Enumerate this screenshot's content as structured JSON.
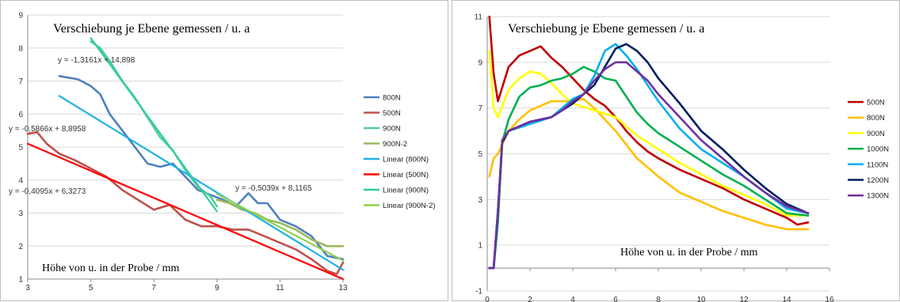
{
  "chart_data": [
    {
      "type": "line",
      "title": "Verschiebung je Ebene gemessen / u. a",
      "xlabel": "Höhe von u. in der Probe / mm",
      "ylabel": "",
      "xlim": [
        3,
        13
      ],
      "ylim": [
        1,
        9
      ],
      "x_ticks": [
        "3",
        "5",
        "7",
        "9",
        "11",
        "13"
      ],
      "y_ticks": [
        "1",
        "2",
        "3",
        "4",
        "5",
        "6",
        "7",
        "8",
        "9"
      ],
      "grid": "horizontal",
      "legend_position": "right",
      "series": [
        {
          "name": "800N",
          "color": "#4f81bd",
          "points": [
            [
              4.0,
              7.15
            ],
            [
              4.3,
              7.1
            ],
            [
              4.6,
              7.05
            ],
            [
              5.0,
              6.85
            ],
            [
              5.3,
              6.6
            ],
            [
              5.6,
              6.0
            ],
            [
              6.0,
              5.5
            ],
            [
              6.4,
              5.0
            ],
            [
              6.8,
              4.5
            ],
            [
              7.2,
              4.4
            ],
            [
              7.6,
              4.5
            ],
            [
              8.0,
              4.1
            ],
            [
              8.4,
              3.7
            ],
            [
              8.8,
              3.55
            ],
            [
              9.2,
              3.4
            ],
            [
              9.6,
              3.2
            ],
            [
              10.0,
              3.6
            ],
            [
              10.3,
              3.3
            ],
            [
              10.6,
              3.3
            ],
            [
              11.0,
              2.8
            ],
            [
              11.5,
              2.6
            ],
            [
              12.0,
              2.3
            ],
            [
              12.5,
              1.7
            ],
            [
              13.0,
              1.6
            ]
          ]
        },
        {
          "name": "500N",
          "color": "#c0504d",
          "points": [
            [
              3.0,
              5.4
            ],
            [
              3.3,
              5.45
            ],
            [
              3.6,
              5.1
            ],
            [
              4.0,
              4.8
            ],
            [
              4.5,
              4.6
            ],
            [
              5.0,
              4.35
            ],
            [
              5.5,
              4.1
            ],
            [
              6.0,
              3.7
            ],
            [
              6.5,
              3.4
            ],
            [
              7.0,
              3.1
            ],
            [
              7.5,
              3.25
            ],
            [
              8.0,
              2.8
            ],
            [
              8.5,
              2.6
            ],
            [
              9.0,
              2.6
            ],
            [
              9.5,
              2.5
            ],
            [
              10.0,
              2.5
            ],
            [
              10.5,
              2.3
            ],
            [
              11.0,
              2.1
            ],
            [
              11.5,
              1.9
            ],
            [
              12.0,
              1.6
            ],
            [
              12.5,
              1.25
            ],
            [
              12.8,
              1.15
            ],
            [
              13.0,
              1.5
            ]
          ]
        },
        {
          "name": "900N",
          "color": "#4ecca3",
          "points": [
            [
              5.0,
              8.2
            ],
            [
              5.3,
              8.0
            ],
            [
              5.6,
              7.6
            ],
            [
              6.0,
              7.0
            ],
            [
              6.4,
              6.5
            ],
            [
              6.8,
              5.9
            ],
            [
              7.2,
              5.3
            ],
            [
              7.6,
              4.9
            ],
            [
              8.0,
              4.3
            ],
            [
              8.4,
              3.8
            ],
            [
              8.8,
              3.5
            ],
            [
              9.0,
              3.2
            ]
          ]
        },
        {
          "name": "900N-2",
          "color": "#9bbb59",
          "points": [
            [
              9.0,
              3.4
            ],
            [
              9.4,
              3.3
            ],
            [
              9.8,
              3.1
            ],
            [
              10.2,
              3.0
            ],
            [
              10.6,
              2.8
            ],
            [
              11.0,
              2.7
            ],
            [
              11.5,
              2.5
            ],
            [
              12.0,
              2.2
            ],
            [
              12.5,
              2.0
            ],
            [
              13.0,
              2.0
            ]
          ]
        },
        {
          "name": "Linear (800N)",
          "color": "#1fb1e6",
          "points": [
            [
              4.0,
              6.55
            ],
            [
              13.0,
              1.28
            ]
          ]
        },
        {
          "name": "Linear (500N)",
          "color": "#ff0000",
          "points": [
            [
              3.0,
              5.1
            ],
            [
              13.0,
              1.0
            ]
          ]
        },
        {
          "name": "Linear (900N)",
          "color": "#33cc99",
          "points": [
            [
              5.0,
              8.3
            ],
            [
              9.0,
              3.05
            ]
          ]
        },
        {
          "name": "Linear (900N-2)",
          "color": "#92d050",
          "points": [
            [
              9.0,
              3.58
            ],
            [
              13.0,
              1.56
            ]
          ]
        }
      ],
      "annotations": [
        "y = -1,3161x + 14,898",
        "y = -0,5866x + 8,8958",
        "y = -0,4095x + 6,3273",
        "y = -0,5039x + 8,1165"
      ]
    },
    {
      "type": "line",
      "title": "Verschiebung je Ebene gemessen / u. a",
      "xlabel": "Höhe von u. in der Probe / mm",
      "ylabel": "",
      "xlim": [
        0,
        16
      ],
      "ylim": [
        -1,
        11
      ],
      "x_ticks": [
        "0",
        "2",
        "4",
        "6",
        "8",
        "10",
        "12",
        "14",
        "16"
      ],
      "y_ticks": [
        "-1",
        "1",
        "3",
        "5",
        "7",
        "9",
        "11"
      ],
      "grid": "horizontal",
      "legend_position": "right",
      "series": [
        {
          "name": "500N",
          "color": "#c00000",
          "points": [
            [
              0.1,
              11.0
            ],
            [
              0.3,
              8.5
            ],
            [
              0.5,
              7.3
            ],
            [
              1.0,
              8.8
            ],
            [
              1.5,
              9.3
            ],
            [
              2.0,
              9.5
            ],
            [
              2.5,
              9.7
            ],
            [
              3.0,
              9.2
            ],
            [
              3.5,
              8.8
            ],
            [
              4.0,
              8.3
            ],
            [
              4.5,
              7.8
            ],
            [
              5.0,
              7.4
            ],
            [
              5.5,
              7.1
            ],
            [
              6.0,
              6.6
            ],
            [
              6.5,
              6.0
            ],
            [
              7.0,
              5.5
            ],
            [
              7.5,
              5.1
            ],
            [
              8.0,
              4.8
            ],
            [
              9.0,
              4.3
            ],
            [
              10.0,
              3.9
            ],
            [
              11.0,
              3.5
            ],
            [
              12.0,
              3.0
            ],
            [
              13.0,
              2.6
            ],
            [
              14.0,
              2.2
            ],
            [
              14.5,
              1.9
            ],
            [
              15.0,
              2.0
            ]
          ]
        },
        {
          "name": "800N",
          "color": "#ffc000",
          "points": [
            [
              0.1,
              4.0
            ],
            [
              0.3,
              4.8
            ],
            [
              0.5,
              5.0
            ],
            [
              1.0,
              6.0
            ],
            [
              1.5,
              6.5
            ],
            [
              2.0,
              6.9
            ],
            [
              3.0,
              7.3
            ],
            [
              4.0,
              7.3
            ],
            [
              4.5,
              7.4
            ],
            [
              5.0,
              7.0
            ],
            [
              5.5,
              6.5
            ],
            [
              6.0,
              6.0
            ],
            [
              6.5,
              5.4
            ],
            [
              7.0,
              4.8
            ],
            [
              7.5,
              4.4
            ],
            [
              8.0,
              4.0
            ],
            [
              9.0,
              3.3
            ],
            [
              10.0,
              2.9
            ],
            [
              11.0,
              2.5
            ],
            [
              12.0,
              2.2
            ],
            [
              13.0,
              1.9
            ],
            [
              14.0,
              1.7
            ],
            [
              15.0,
              1.7
            ]
          ]
        },
        {
          "name": "900N",
          "color": "#ffff00",
          "points": [
            [
              0.1,
              9.5
            ],
            [
              0.3,
              7.0
            ],
            [
              0.5,
              6.6
            ],
            [
              1.0,
              7.8
            ],
            [
              1.5,
              8.3
            ],
            [
              2.0,
              8.6
            ],
            [
              2.5,
              8.5
            ],
            [
              3.0,
              8.1
            ],
            [
              3.5,
              7.6
            ],
            [
              4.0,
              7.2
            ],
            [
              5.0,
              6.9
            ],
            [
              6.0,
              6.6
            ],
            [
              6.5,
              6.2
            ],
            [
              7.0,
              5.8
            ],
            [
              8.0,
              5.2
            ],
            [
              9.0,
              4.6
            ],
            [
              10.0,
              4.1
            ],
            [
              11.0,
              3.6
            ],
            [
              12.0,
              3.2
            ],
            [
              13.0,
              2.8
            ],
            [
              14.0,
              2.3
            ],
            [
              15.0,
              2.3
            ]
          ]
        },
        {
          "name": "1000N",
          "color": "#00b050",
          "points": [
            [
              0.1,
              0.0
            ],
            [
              0.3,
              0.0
            ],
            [
              0.5,
              2.0
            ],
            [
              0.7,
              5.5
            ],
            [
              1.0,
              6.5
            ],
            [
              1.5,
              7.5
            ],
            [
              2.0,
              7.9
            ],
            [
              2.5,
              8.0
            ],
            [
              3.0,
              8.2
            ],
            [
              3.5,
              8.3
            ],
            [
              4.0,
              8.5
            ],
            [
              4.5,
              8.8
            ],
            [
              5.0,
              8.6
            ],
            [
              5.5,
              8.3
            ],
            [
              6.0,
              8.2
            ],
            [
              6.5,
              7.5
            ],
            [
              7.0,
              6.8
            ],
            [
              7.5,
              6.3
            ],
            [
              8.0,
              5.9
            ],
            [
              9.0,
              5.3
            ],
            [
              10.0,
              4.7
            ],
            [
              11.0,
              4.1
            ],
            [
              12.0,
              3.6
            ],
            [
              13.0,
              3.0
            ],
            [
              14.0,
              2.4
            ],
            [
              15.0,
              2.3
            ]
          ]
        },
        {
          "name": "1100N",
          "color": "#00b0f0",
          "points": [
            [
              0.1,
              0.0
            ],
            [
              0.3,
              0.0
            ],
            [
              0.5,
              2.5
            ],
            [
              0.7,
              5.5
            ],
            [
              1.0,
              6.0
            ],
            [
              2.0,
              6.3
            ],
            [
              3.0,
              6.6
            ],
            [
              3.5,
              7.0
            ],
            [
              4.0,
              7.4
            ],
            [
              4.5,
              7.6
            ],
            [
              5.0,
              8.4
            ],
            [
              5.5,
              9.5
            ],
            [
              6.0,
              9.8
            ],
            [
              6.5,
              9.3
            ],
            [
              7.0,
              8.7
            ],
            [
              7.5,
              8.0
            ],
            [
              8.0,
              7.3
            ],
            [
              9.0,
              6.1
            ],
            [
              10.0,
              5.2
            ],
            [
              11.0,
              4.6
            ],
            [
              12.0,
              4.0
            ],
            [
              13.0,
              3.3
            ],
            [
              14.0,
              2.6
            ],
            [
              15.0,
              2.4
            ]
          ]
        },
        {
          "name": "1200N",
          "color": "#002060",
          "points": [
            [
              0.1,
              0.0
            ],
            [
              0.3,
              0.0
            ],
            [
              0.5,
              2.5
            ],
            [
              0.7,
              5.5
            ],
            [
              1.0,
              6.0
            ],
            [
              2.0,
              6.4
            ],
            [
              3.0,
              6.6
            ],
            [
              3.5,
              6.9
            ],
            [
              4.0,
              7.2
            ],
            [
              4.5,
              7.6
            ],
            [
              5.0,
              8.0
            ],
            [
              5.5,
              8.8
            ],
            [
              6.0,
              9.6
            ],
            [
              6.5,
              9.8
            ],
            [
              7.0,
              9.5
            ],
            [
              7.5,
              9.0
            ],
            [
              8.0,
              8.3
            ],
            [
              9.0,
              7.2
            ],
            [
              10.0,
              6.0
            ],
            [
              11.0,
              5.2
            ],
            [
              12.0,
              4.3
            ],
            [
              13.0,
              3.5
            ],
            [
              14.0,
              2.8
            ],
            [
              15.0,
              2.4
            ]
          ]
        },
        {
          "name": "1300N",
          "color": "#7030a0",
          "points": [
            [
              0.1,
              0.0
            ],
            [
              0.3,
              0.0
            ],
            [
              0.5,
              2.5
            ],
            [
              0.7,
              5.6
            ],
            [
              1.0,
              6.0
            ],
            [
              2.0,
              6.4
            ],
            [
              3.0,
              6.6
            ],
            [
              3.5,
              6.9
            ],
            [
              4.0,
              7.3
            ],
            [
              4.5,
              7.6
            ],
            [
              5.0,
              8.2
            ],
            [
              5.5,
              8.7
            ],
            [
              6.0,
              9.0
            ],
            [
              6.5,
              9.0
            ],
            [
              7.0,
              8.6
            ],
            [
              7.5,
              8.2
            ],
            [
              8.0,
              7.6
            ],
            [
              9.0,
              6.6
            ],
            [
              10.0,
              5.6
            ],
            [
              11.0,
              4.8
            ],
            [
              12.0,
              4.0
            ],
            [
              13.0,
              3.3
            ],
            [
              14.0,
              2.7
            ],
            [
              15.0,
              2.4
            ]
          ]
        }
      ]
    }
  ]
}
